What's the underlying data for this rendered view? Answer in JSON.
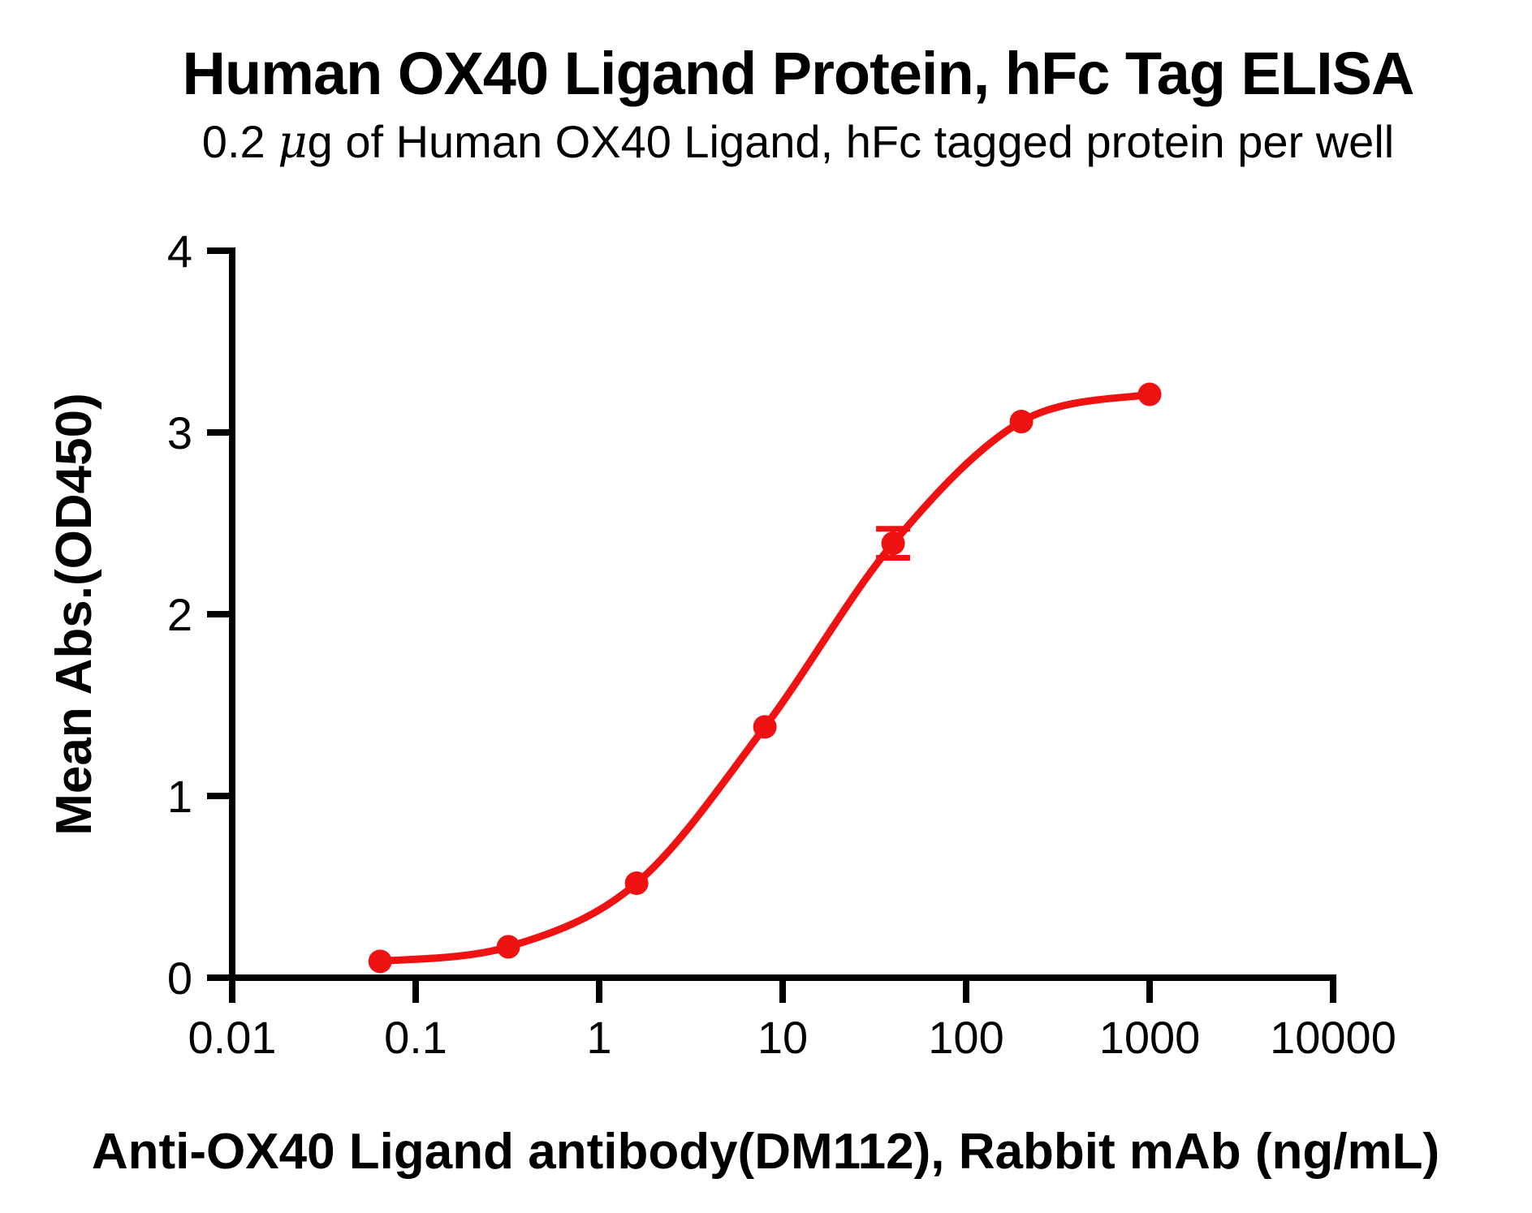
{
  "figure": {
    "title": "Human OX40 Ligand Protein, hFc Tag ELISA",
    "subtitle_prefix": "0.2 ",
    "subtitle_mu": "μ",
    "subtitle_suffix": "g of Human OX40 Ligand, hFc tagged protein per well"
  },
  "chart_data": {
    "type": "scatter",
    "title": "Human OX40 Ligand Protein, hFc Tag ELISA",
    "subtitle": "0.2 μg of Human OX40 Ligand, hFc tagged protein per well",
    "xlabel": "Anti-OX40 Ligand antibody(DM112), Rabbit mAb (ng/mL)",
    "ylabel": "Mean Abs.(OD450)",
    "x_scale": "log10",
    "xlim": [
      0.01,
      10000
    ],
    "ylim": [
      0,
      4
    ],
    "grid": false,
    "legend_position": "none",
    "x_ticks": [
      {
        "value": 0.01,
        "label": "0.01"
      },
      {
        "value": 0.1,
        "label": "0.1"
      },
      {
        "value": 1,
        "label": "1"
      },
      {
        "value": 10,
        "label": "10"
      },
      {
        "value": 100,
        "label": "100"
      },
      {
        "value": 1000,
        "label": "1000"
      },
      {
        "value": 10000,
        "label": "10000"
      }
    ],
    "y_ticks": [
      {
        "value": 0,
        "label": "0"
      },
      {
        "value": 1,
        "label": "1"
      },
      {
        "value": 2,
        "label": "2"
      },
      {
        "value": 3,
        "label": "3"
      },
      {
        "value": 4,
        "label": "4"
      }
    ],
    "series": [
      {
        "name": "Human OX40 Ligand, hFc tagged protein",
        "marker": "circle",
        "color": "#EE1212",
        "curve": "sigmoidal-4PL-fit",
        "x": [
          0.064,
          0.32,
          1.6,
          8,
          40,
          200,
          1000
        ],
        "y": [
          0.09,
          0.17,
          0.52,
          1.38,
          2.39,
          3.06,
          3.21
        ],
        "y_sd": [
          0,
          0,
          0,
          0,
          0.08,
          0,
          0
        ]
      }
    ],
    "colors": {
      "series_red": "#EE1212",
      "axis_black": "#000000",
      "background": "#FFFFFF"
    }
  }
}
